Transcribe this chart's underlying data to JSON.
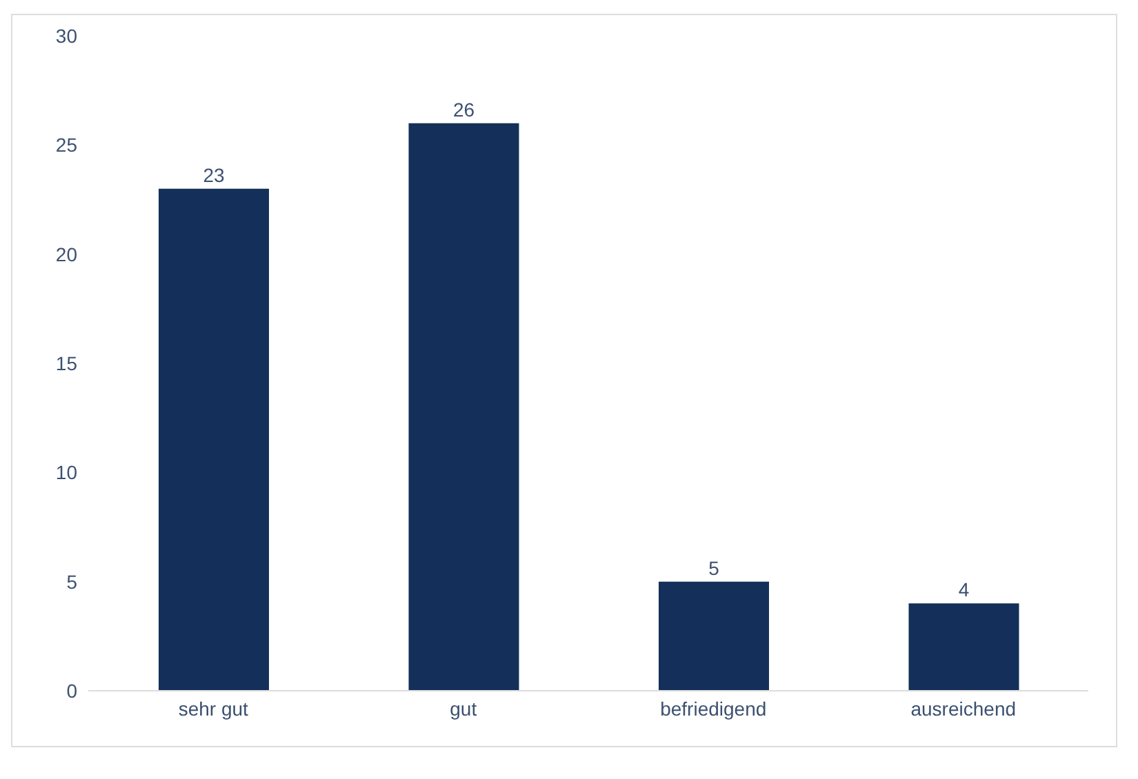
{
  "chart_data": {
    "type": "bar",
    "categories": [
      "sehr gut",
      "gut",
      "befriedigend",
      "ausreichend"
    ],
    "values": [
      23,
      26,
      5,
      4
    ],
    "color": "#14305a",
    "ylim": [
      0,
      30
    ],
    "yticks": [
      0,
      5,
      10,
      15,
      20,
      25,
      30
    ],
    "data_labels": true
  }
}
